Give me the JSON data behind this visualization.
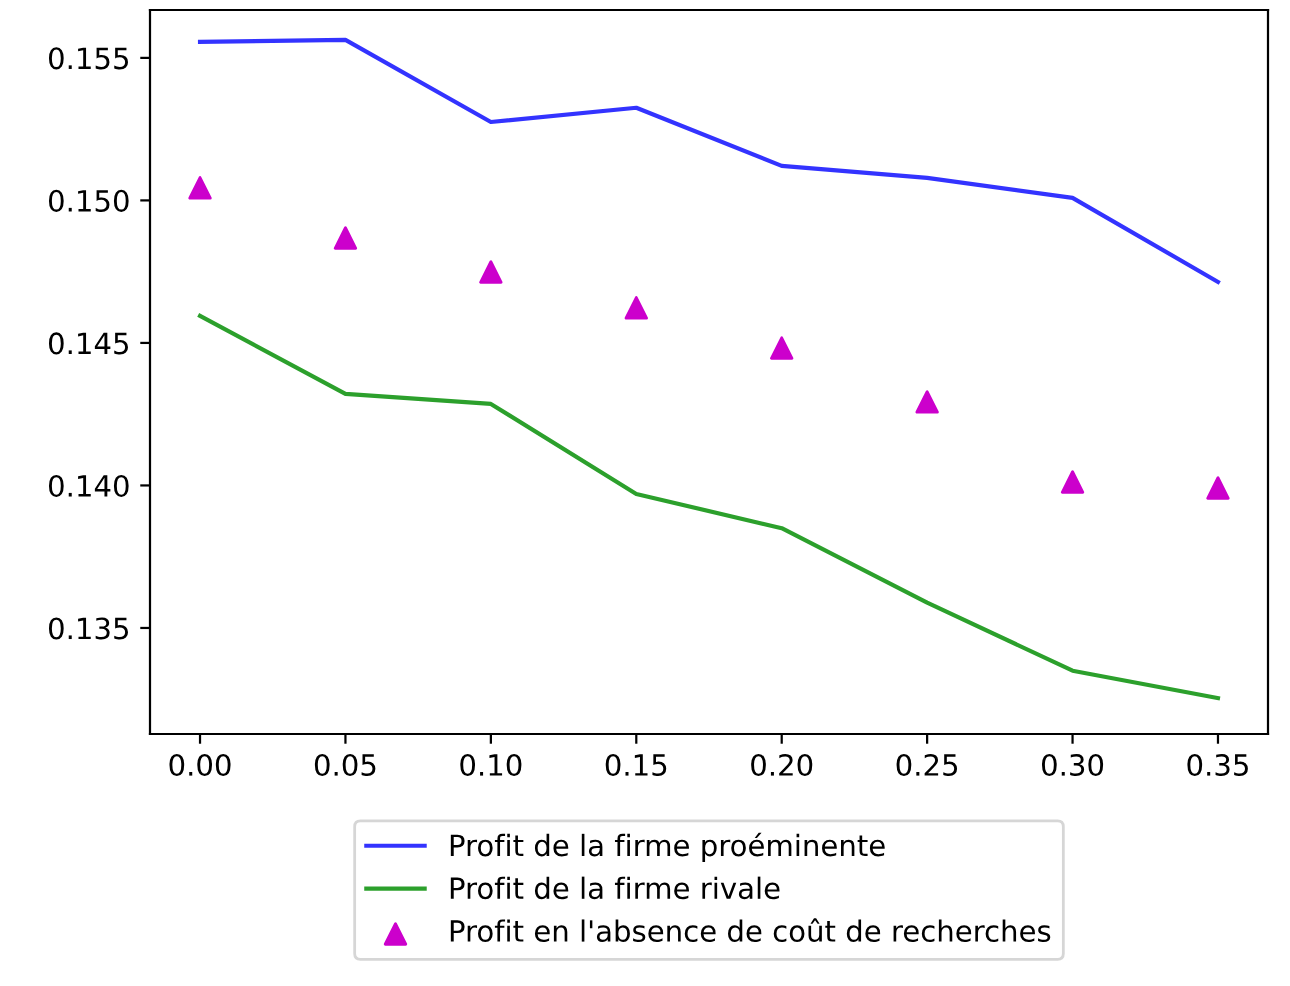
{
  "chart_data": {
    "type": "line",
    "x": [
      0.0,
      0.05,
      0.1,
      0.15,
      0.2,
      0.25,
      0.3,
      0.35
    ],
    "series": [
      {
        "name": "Profit de la firme proéminente",
        "color": "#3333ff",
        "values": [
          0.15556,
          0.15563,
          0.15275,
          0.15325,
          0.15121,
          0.15079,
          0.15009,
          0.14714
        ]
      },
      {
        "name": "Profit de la firme rivale",
        "color": "#2ca02c",
        "values": [
          0.14595,
          0.14321,
          0.14286,
          0.1397,
          0.1385,
          0.13589,
          0.1335,
          0.13254
        ]
      },
      {
        "name": "Profit en l'absence de coût de recherches",
        "type": "scatter",
        "marker": "triangle",
        "color": "#cc00cc",
        "values": [
          0.15044,
          0.14868,
          0.14749,
          0.14623,
          0.14482,
          0.14293,
          0.14012,
          0.13991
        ]
      }
    ],
    "xlim": [
      -0.0172,
      0.3672
    ],
    "ylim": [
      0.13128,
      0.15668
    ],
    "xticks": [
      {
        "value": 0.0,
        "label": "0.00"
      },
      {
        "value": 0.05,
        "label": "0.05"
      },
      {
        "value": 0.1,
        "label": "0.10"
      },
      {
        "value": 0.15,
        "label": "0.15"
      },
      {
        "value": 0.2,
        "label": "0.20"
      },
      {
        "value": 0.25,
        "label": "0.25"
      },
      {
        "value": 0.3,
        "label": "0.30"
      },
      {
        "value": 0.35,
        "label": "0.35"
      }
    ],
    "yticks": [
      {
        "value": 0.135,
        "label": "0.135"
      },
      {
        "value": 0.14,
        "label": "0.140"
      },
      {
        "value": 0.145,
        "label": "0.145"
      },
      {
        "value": 0.15,
        "label": "0.150"
      },
      {
        "value": 0.155,
        "label": "0.155"
      }
    ],
    "grid": false,
    "legend": "bottom"
  }
}
